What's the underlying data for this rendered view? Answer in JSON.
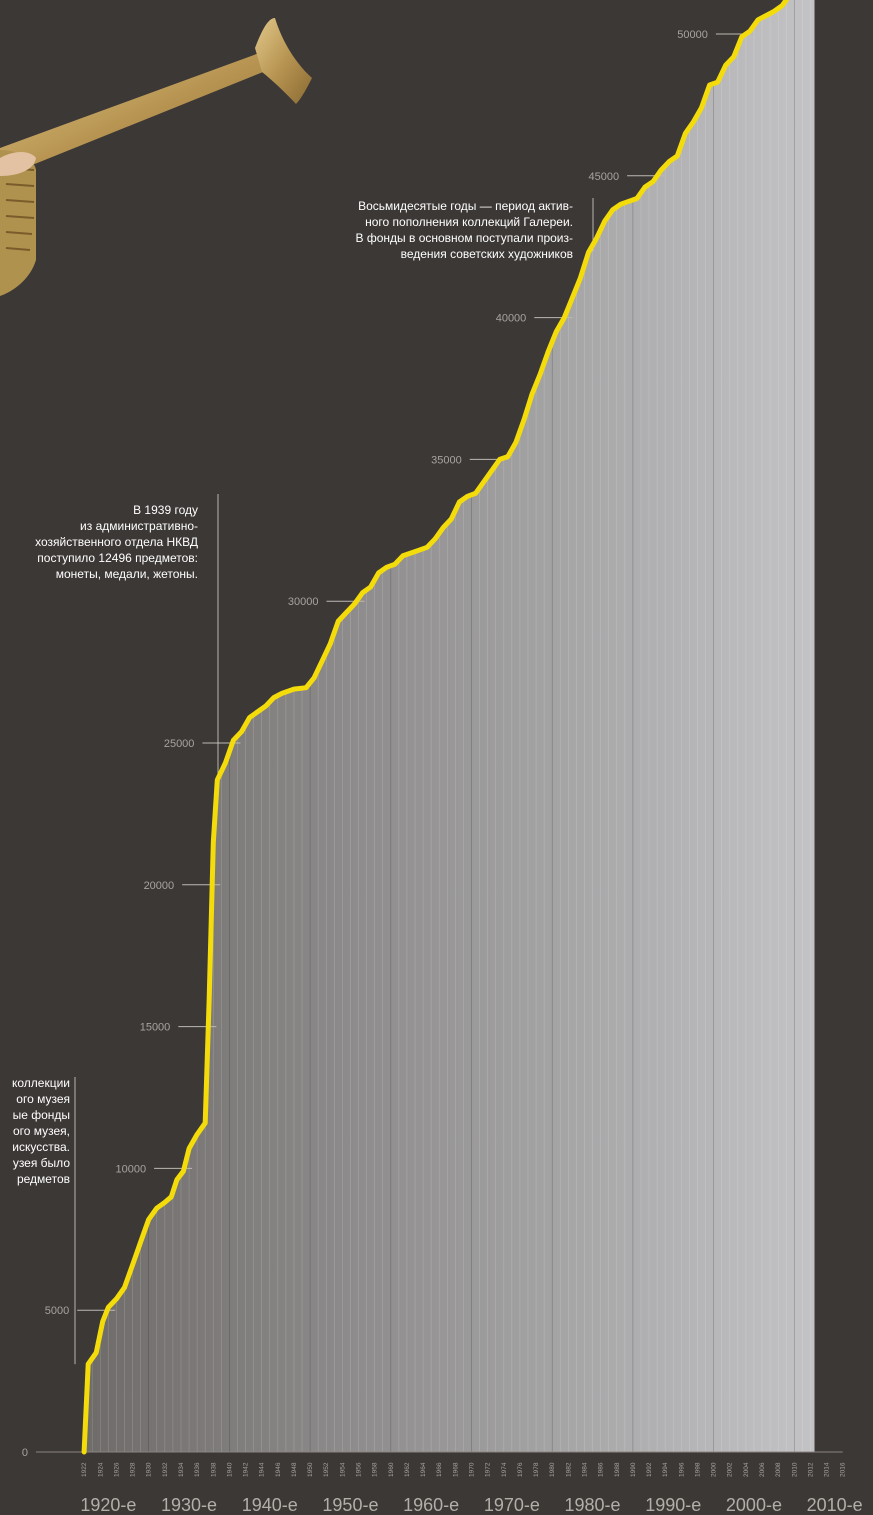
{
  "chart_data": {
    "type": "area",
    "y_ticks": [
      0,
      5000,
      10000,
      15000,
      20000,
      25000,
      30000,
      35000,
      40000,
      45000,
      50000
    ],
    "ylim": [
      0,
      50000
    ],
    "xlim": [
      1920,
      2016
    ],
    "year_labels": [
      "1922",
      "1924",
      "1926",
      "1928",
      "1930",
      "1932",
      "1934",
      "1936",
      "1938",
      "1940",
      "1942",
      "1944",
      "1946",
      "1948",
      "1950",
      "1952",
      "1954",
      "1956",
      "1958",
      "1960",
      "1962",
      "1964",
      "1966",
      "1968",
      "1970",
      "1972",
      "1974",
      "1976",
      "1978",
      "1980",
      "1982",
      "1984",
      "1986",
      "1988",
      "1990",
      "1992",
      "1994",
      "1996",
      "1998",
      "2000",
      "2002",
      "2004",
      "2006",
      "2008",
      "2010",
      "2012",
      "2014",
      "2016"
    ],
    "decade_labels": [
      "1920-е",
      "1930-е",
      "1940-е",
      "1950-е",
      "1960-е",
      "1970-е",
      "1980-е",
      "1990-е",
      "2000-е",
      "2010-е"
    ],
    "series": [
      {
        "values": [
          [
            1922,
            0
          ],
          [
            1922.5,
            3100
          ],
          [
            1923.5,
            3500
          ],
          [
            1924.3,
            4600
          ],
          [
            1925,
            5100
          ],
          [
            1926,
            5400
          ],
          [
            1927,
            5800
          ],
          [
            1928,
            6600
          ],
          [
            1929,
            7400
          ],
          [
            1930,
            8200
          ],
          [
            1931,
            8600
          ],
          [
            1932,
            8800
          ],
          [
            1932.8,
            9000
          ],
          [
            1933.5,
            9600
          ],
          [
            1934.3,
            9900
          ],
          [
            1935,
            10700
          ],
          [
            1936,
            11200
          ],
          [
            1937,
            11600
          ],
          [
            1937.5,
            16000
          ],
          [
            1938,
            21500
          ],
          [
            1938.5,
            23700
          ],
          [
            1939.5,
            24300
          ],
          [
            1940.5,
            25100
          ],
          [
            1941.5,
            25400
          ],
          [
            1942.5,
            25900
          ],
          [
            1943.5,
            26100
          ],
          [
            1944.5,
            26300
          ],
          [
            1945.5,
            26600
          ],
          [
            1946.5,
            26750
          ],
          [
            1948,
            26900
          ],
          [
            1949.5,
            26950
          ],
          [
            1950.5,
            27300
          ],
          [
            1951.5,
            27900
          ],
          [
            1952.5,
            28500
          ],
          [
            1953.5,
            29300
          ],
          [
            1954.5,
            29600
          ],
          [
            1955.5,
            29900
          ],
          [
            1956.5,
            30300
          ],
          [
            1957.5,
            30500
          ],
          [
            1958.5,
            31000
          ],
          [
            1959.5,
            31200
          ],
          [
            1960.5,
            31300
          ],
          [
            1961.5,
            31600
          ],
          [
            1962.5,
            31700
          ],
          [
            1963.5,
            31800
          ],
          [
            1964.5,
            31900
          ],
          [
            1965.5,
            32200
          ],
          [
            1966.5,
            32600
          ],
          [
            1967.5,
            32900
          ],
          [
            1968.5,
            33500
          ],
          [
            1969.5,
            33700
          ],
          [
            1970.5,
            33800
          ],
          [
            1971.5,
            34200
          ],
          [
            1972.5,
            34600
          ],
          [
            1973.5,
            35000
          ],
          [
            1974.5,
            35100
          ],
          [
            1975.5,
            35600
          ],
          [
            1976.5,
            36400
          ],
          [
            1977.5,
            37300
          ],
          [
            1978.5,
            38000
          ],
          [
            1979.5,
            38800
          ],
          [
            1980.5,
            39500
          ],
          [
            1981.5,
            40000
          ],
          [
            1982.5,
            40700
          ],
          [
            1983.5,
            41400
          ],
          [
            1984.5,
            42300
          ],
          [
            1985.5,
            42800
          ],
          [
            1986.5,
            43400
          ],
          [
            1987.5,
            43800
          ],
          [
            1988.5,
            44000
          ],
          [
            1989.5,
            44100
          ],
          [
            1990.5,
            44200
          ],
          [
            1991.5,
            44600
          ],
          [
            1992.5,
            44800
          ],
          [
            1993.5,
            45200
          ],
          [
            1994.5,
            45500
          ],
          [
            1995.5,
            45700
          ],
          [
            1996.5,
            46500
          ],
          [
            1997.5,
            46900
          ],
          [
            1998.5,
            47400
          ],
          [
            1999.5,
            48200
          ],
          [
            2000.5,
            48300
          ],
          [
            2001.5,
            48900
          ],
          [
            2002.5,
            49200
          ],
          [
            2003.5,
            49900
          ],
          [
            2004.5,
            50100
          ],
          [
            2005.5,
            50500
          ],
          [
            2006.5,
            50650
          ],
          [
            2007.5,
            50800
          ],
          [
            2008.5,
            51000
          ],
          [
            2009.5,
            51400
          ],
          [
            2010.5,
            51800
          ],
          [
            2011.5,
            52000
          ],
          [
            2012.5,
            52100
          ]
        ]
      }
    ],
    "annotations": [
      {
        "id": "1939",
        "lines": [
          "В 1939 году",
          "из административно-",
          "хозяйственного отдела НКВД",
          "поступило 12496 предметов:",
          "монеты, медали, жетоны."
        ]
      },
      {
        "id": "1980",
        "lines": [
          "Восьмидесятые годы  — период актив-",
          "ного пополнения коллекций Галереи.",
          "В фонды в основном поступали  произ-",
          "ведения советских художников"
        ]
      },
      {
        "id": "1922",
        "lines": [
          "коллекции",
          "ого музея",
          "ые фонды",
          "ого музея,",
          "искусства.",
          "узея было",
          "редметов"
        ]
      }
    ],
    "colors": {
      "background": "#3c3836",
      "line": "#f4dc0b",
      "area_start": "#6e6b69",
      "area_end": "#c3c3c6"
    },
    "grid": false
  },
  "decor": {
    "image": "brass-horn-icon"
  }
}
